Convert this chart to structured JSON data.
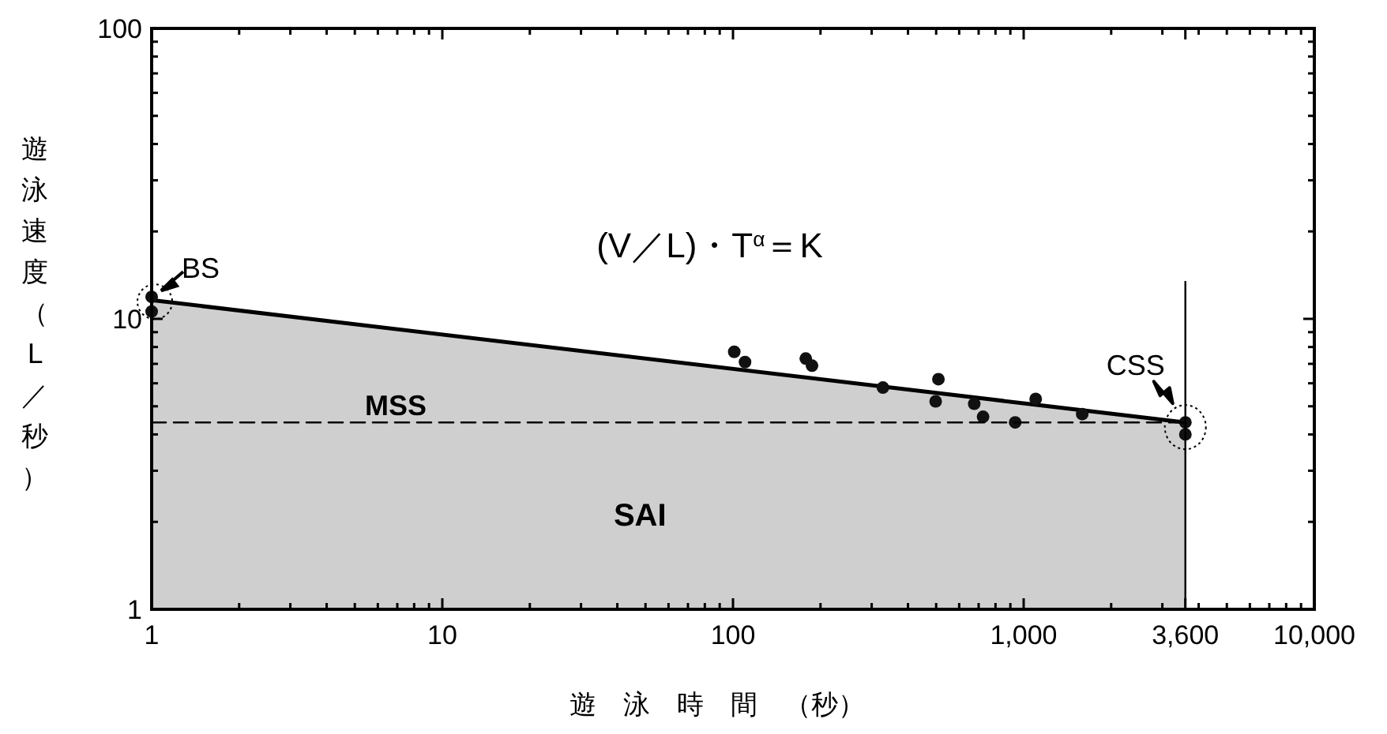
{
  "chart_data": {
    "type": "scatter",
    "xlabel": "遊　泳　時　間　（秒）",
    "ylabel": "遊泳速度（L／秒）",
    "log": "xy",
    "grid": false,
    "xlim": [
      1,
      10000
    ],
    "ylim": [
      1,
      100
    ],
    "xticks": [
      1,
      {
        "value": 2,
        "label": null
      },
      {
        "value": 3,
        "label": null
      },
      {
        "value": 4,
        "label": null
      },
      {
        "value": 5,
        "label": null
      },
      {
        "value": 6,
        "label": null
      },
      {
        "value": 7,
        "label": null
      },
      {
        "value": 8,
        "label": null
      },
      {
        "value": 9,
        "label": null
      },
      10,
      {
        "value": 20,
        "label": null
      },
      {
        "value": 30,
        "label": null
      },
      {
        "value": 40,
        "label": null
      },
      {
        "value": 50,
        "label": null
      },
      {
        "value": 60,
        "label": null
      },
      {
        "value": 70,
        "label": null
      },
      {
        "value": 80,
        "label": null
      },
      {
        "value": 90,
        "label": null
      },
      100,
      {
        "value": 200,
        "label": null
      },
      {
        "value": 300,
        "label": null
      },
      {
        "value": 400,
        "label": null
      },
      {
        "value": 500,
        "label": null
      },
      {
        "value": 600,
        "label": null
      },
      {
        "value": 700,
        "label": null
      },
      {
        "value": 800,
        "label": null
      },
      {
        "value": 900,
        "label": null
      },
      {
        "value": 1000,
        "label": "1,000"
      },
      {
        "value": 2000,
        "label": null
      },
      {
        "value": 3000,
        "label": null
      },
      {
        "value": 3600,
        "label": "3,600"
      },
      {
        "value": 4000,
        "label": null
      },
      {
        "value": 5000,
        "label": null
      },
      {
        "value": 6000,
        "label": null
      },
      {
        "value": 7000,
        "label": null
      },
      {
        "value": 8000,
        "label": null
      },
      {
        "value": 9000,
        "label": null
      },
      {
        "value": 10000,
        "label": "10,000"
      }
    ],
    "yticks": [
      1,
      {
        "value": 2,
        "label": null
      },
      {
        "value": 3,
        "label": null
      },
      {
        "value": 4,
        "label": null
      },
      {
        "value": 5,
        "label": null
      },
      {
        "value": 6,
        "label": null
      },
      {
        "value": 7,
        "label": null
      },
      {
        "value": 8,
        "label": null
      },
      {
        "value": 9,
        "label": null
      },
      10,
      {
        "value": 20,
        "label": null
      },
      {
        "value": 30,
        "label": null
      },
      {
        "value": 40,
        "label": null
      },
      {
        "value": 50,
        "label": null
      },
      {
        "value": 60,
        "label": null
      },
      {
        "value": 70,
        "label": null
      },
      {
        "value": 80,
        "label": null
      },
      {
        "value": 90,
        "label": null
      },
      100
    ],
    "series": [
      {
        "type": "area",
        "color": "#cfcfcf",
        "x": [
          1,
          3600
        ],
        "values": [
          11.6,
          4.4
        ]
      },
      {
        "color": "#111111",
        "marker": "circle",
        "x": [
          1,
          1,
          101,
          110,
          178,
          187,
          328,
          509,
          498,
          676,
          725,
          935,
          1100,
          1590,
          3600,
          3600
        ],
        "values": [
          11.9,
          10.6,
          7.7,
          7.1,
          7.3,
          6.9,
          5.8,
          6.2,
          5.2,
          5.1,
          4.6,
          4.4,
          5.3,
          4.7,
          4.4,
          4.0
        ]
      },
      {
        "type": "line",
        "color": "#000000",
        "line_style": "dashed",
        "x": [
          1,
          3600
        ],
        "values": [
          4.4,
          4.4
        ]
      }
    ],
    "ref_lines": [
      {
        "axis": "x",
        "value": 3600,
        "color": "#000000",
        "line_style": "solid"
      }
    ],
    "annotations": [
      {
        "text": "BS",
        "x": 1,
        "y": 11.6
      },
      {
        "text": "CSS",
        "x": 3600,
        "y": 4.4
      },
      "(V／L)・T$^{α}$＝K",
      "MSS",
      "SAI"
    ]
  }
}
